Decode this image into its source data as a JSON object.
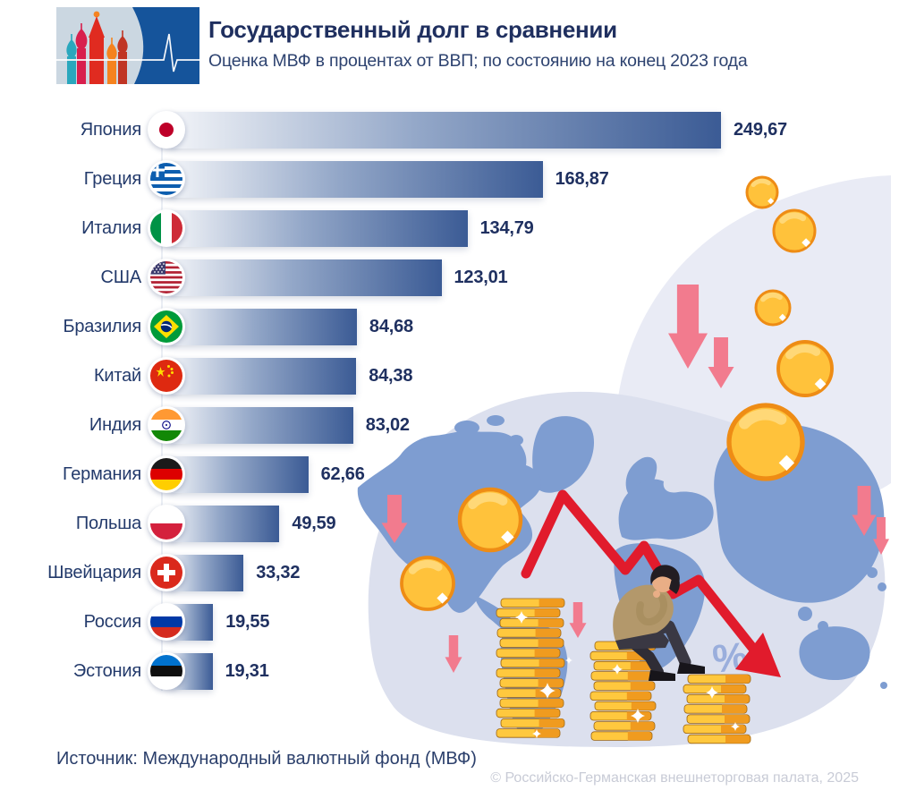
{
  "header": {
    "title": "Государственный долг в сравнении",
    "subtitle": "Оценка МВФ в процентах от ВВП; по состоянию на конец 2023 года",
    "logo": {
      "left_icon": "st-basils-cathedral",
      "right_icon": "heartbeat-pulse-line"
    }
  },
  "chart_data": {
    "type": "bar",
    "orientation": "horizontal",
    "title": "Государственный долг в сравнении",
    "subtitle": "Оценка МВФ в процентах от ВВП; по состоянию на конец 2023 года",
    "unit": "percent of GDP",
    "xlim": [
      0,
      260
    ],
    "grid": false,
    "legend": false,
    "categories": [
      "Япония",
      "Греция",
      "Италия",
      "США",
      "Бразилия",
      "Китай",
      "Индия",
      "Германия",
      "Польша",
      "Швейцария",
      "Россия",
      "Эстония"
    ],
    "values": [
      249.67,
      168.87,
      134.79,
      123.01,
      84.68,
      84.38,
      83.02,
      62.66,
      49.59,
      33.32,
      19.55,
      19.31
    ],
    "value_labels": [
      "249,67",
      "168,87",
      "134,79",
      "123,01",
      "84,68",
      "84,38",
      "83,02",
      "62,66",
      "49,59",
      "33,32",
      "19,55",
      "19,31"
    ],
    "flags": [
      "japan",
      "greece",
      "italy",
      "usa",
      "brazil",
      "china",
      "india",
      "germany",
      "poland",
      "switzerland",
      "russia",
      "estonia"
    ]
  },
  "illustration": {
    "percent_symbol": "%",
    "elements": [
      "world-map",
      "falling-coins",
      "down-arrows",
      "declining-red-arrow",
      "coin-stacks",
      "sitting-person"
    ]
  },
  "footer": {
    "source": "Источник: Международный валютный фонд (МВФ)",
    "copyright": "© Российско-Германская внешнеторговая палата, 2025"
  },
  "colors": {
    "bar_dark": "#3B5B95",
    "bar_light": "#F2F4F8",
    "title_text": "#1F2F5F",
    "value_text": "#1F3060",
    "map": "#7E9DD1",
    "blob": "#DCE0EE",
    "blob_light": "#E9EBF5",
    "coin_gold": "#FFC23B",
    "coin_border": "#EE8C15",
    "stack_gold": "#FFC83E",
    "stack_shade": "#F09B1F",
    "pink_arrow": "#F27B8E",
    "red_arrow": "#E11B2C",
    "logo_blue": "#15549B"
  }
}
